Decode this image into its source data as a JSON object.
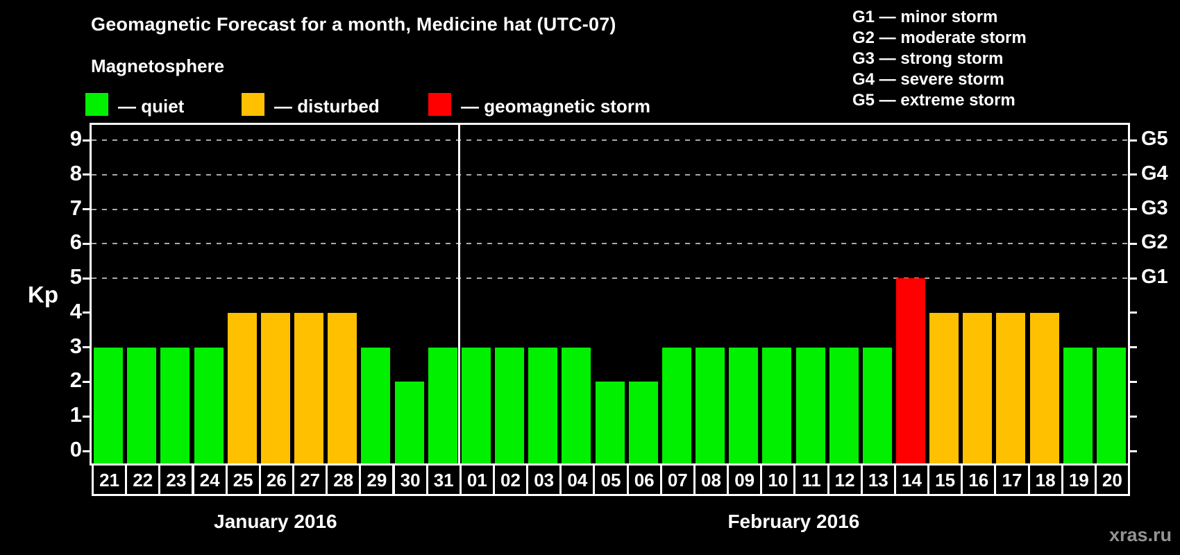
{
  "title": "Geomagnetic Forecast for a month, Medicine hat (UTC-07)",
  "subtitle": "Magnetosphere",
  "watermark": "xras.ru",
  "colors": {
    "quiet": "#00f000",
    "disturbed": "#ffc000",
    "storm": "#ff0000",
    "background": "#000000",
    "text": "#ffffff",
    "grid": "#aaaaaa",
    "watermark": "#949494"
  },
  "magnetosphere_legend": [
    {
      "key": "quiet",
      "label": "— quiet"
    },
    {
      "key": "disturbed",
      "label": "— disturbed"
    },
    {
      "key": "storm",
      "label": "— geomagnetic storm"
    }
  ],
  "storm_scale_legend": [
    "G1 — minor storm",
    "G2 — moderate storm",
    "G3 — strong storm",
    "G4 — severe storm",
    "G5 — extreme storm"
  ],
  "chart_data": {
    "type": "bar",
    "title": "Geomagnetic Forecast for a month, Medicine hat (UTC-07)",
    "ylabel": "Kp",
    "ylim": [
      0,
      9
    ],
    "yticks": [
      0,
      1,
      2,
      3,
      4,
      5,
      6,
      7,
      8,
      9
    ],
    "gridline_levels": [
      5,
      6,
      7,
      8,
      9
    ],
    "grid": "horizontal dashed at storm levels only",
    "legend_position": "top-left",
    "right_axis": [
      {
        "level": 5,
        "label": "G1"
      },
      {
        "level": 6,
        "label": "G2"
      },
      {
        "level": 7,
        "label": "G3"
      },
      {
        "level": 8,
        "label": "G4"
      },
      {
        "level": 9,
        "label": "G5"
      }
    ],
    "months": [
      {
        "label": "January 2016",
        "days": [
          {
            "day": "21",
            "kp": 3,
            "state": "quiet"
          },
          {
            "day": "22",
            "kp": 3,
            "state": "quiet"
          },
          {
            "day": "23",
            "kp": 3,
            "state": "quiet"
          },
          {
            "day": "24",
            "kp": 3,
            "state": "quiet"
          },
          {
            "day": "25",
            "kp": 4,
            "state": "disturbed"
          },
          {
            "day": "26",
            "kp": 4,
            "state": "disturbed"
          },
          {
            "day": "27",
            "kp": 4,
            "state": "disturbed"
          },
          {
            "day": "28",
            "kp": 4,
            "state": "disturbed"
          },
          {
            "day": "29",
            "kp": 3,
            "state": "quiet"
          },
          {
            "day": "30",
            "kp": 2,
            "state": "quiet"
          },
          {
            "day": "31",
            "kp": 3,
            "state": "quiet"
          }
        ]
      },
      {
        "label": "February 2016",
        "days": [
          {
            "day": "01",
            "kp": 3,
            "state": "quiet"
          },
          {
            "day": "02",
            "kp": 3,
            "state": "quiet"
          },
          {
            "day": "03",
            "kp": 3,
            "state": "quiet"
          },
          {
            "day": "04",
            "kp": 3,
            "state": "quiet"
          },
          {
            "day": "05",
            "kp": 2,
            "state": "quiet"
          },
          {
            "day": "06",
            "kp": 2,
            "state": "quiet"
          },
          {
            "day": "07",
            "kp": 3,
            "state": "quiet"
          },
          {
            "day": "08",
            "kp": 3,
            "state": "quiet"
          },
          {
            "day": "09",
            "kp": 3,
            "state": "quiet"
          },
          {
            "day": "10",
            "kp": 3,
            "state": "quiet"
          },
          {
            "day": "11",
            "kp": 3,
            "state": "quiet"
          },
          {
            "day": "12",
            "kp": 3,
            "state": "quiet"
          },
          {
            "day": "13",
            "kp": 3,
            "state": "quiet"
          },
          {
            "day": "14",
            "kp": 5,
            "state": "storm"
          },
          {
            "day": "15",
            "kp": 4,
            "state": "disturbed"
          },
          {
            "day": "16",
            "kp": 4,
            "state": "disturbed"
          },
          {
            "day": "17",
            "kp": 4,
            "state": "disturbed"
          },
          {
            "day": "18",
            "kp": 4,
            "state": "disturbed"
          },
          {
            "day": "19",
            "kp": 3,
            "state": "quiet"
          },
          {
            "day": "20",
            "kp": 3,
            "state": "quiet"
          }
        ]
      }
    ]
  }
}
